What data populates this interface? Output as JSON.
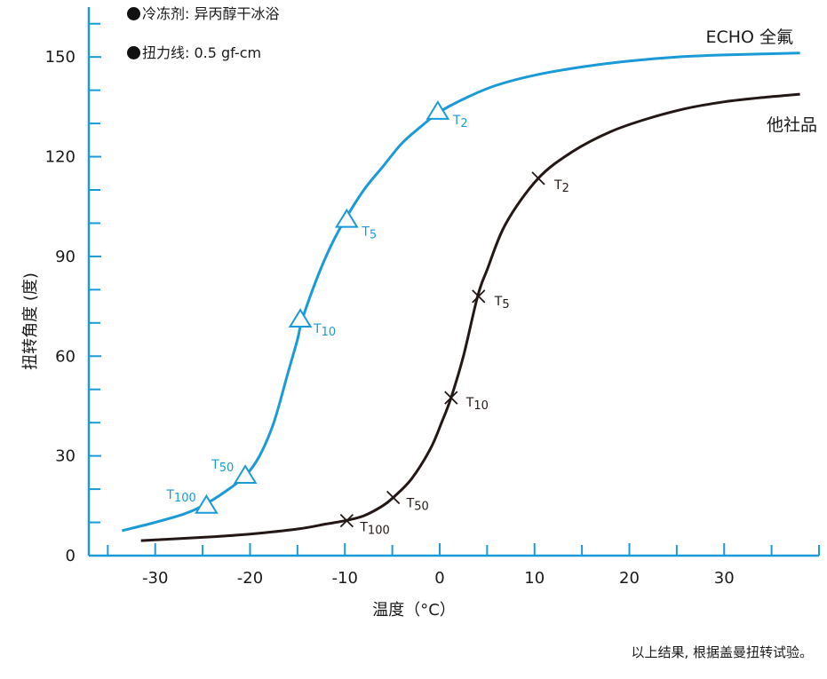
{
  "notes": {
    "refrigerant": "冷冻剂: 异丙醇干冰浴",
    "torque_wire": "扭力线: 0.5 gf-cm"
  },
  "footnote": "以上结果, 根据盖曼扭转试验。",
  "colors": {
    "axis": "#1a9bd7",
    "echo": "#1a9bd7",
    "other": "#231815"
  },
  "chart_data": {
    "type": "line",
    "title": "",
    "xlabel": "温度（°C）",
    "ylabel": "扭转角度 (度)",
    "xlim": [
      -37,
      40
    ],
    "ylim": [
      0,
      165
    ],
    "x_ticks": [
      -30,
      -20,
      -10,
      0,
      10,
      20,
      30
    ],
    "y_ticks": [
      0,
      30,
      60,
      90,
      120,
      150
    ],
    "x_tick_labels": [
      "-30",
      "-20",
      "-10",
      "0",
      "10",
      "20",
      "30"
    ],
    "y_tick_labels": [
      "0",
      "30",
      "60",
      "90",
      "120",
      "150"
    ],
    "grid": false,
    "series": [
      {
        "name": "ECHO 全氟",
        "color": "#1a9bd7",
        "marker": "triangle",
        "x": [
          -33.5,
          -30,
          -27,
          -25,
          -22.5,
          -20.5,
          -19,
          -17.5,
          -16,
          -15,
          -14.5,
          -13,
          -11.5,
          -10,
          -8,
          -6,
          -4,
          -2,
          0,
          3,
          6,
          10,
          15,
          20,
          25,
          30,
          38
        ],
        "y": [
          7.5,
          10,
          12.5,
          15,
          19.5,
          24,
          30,
          40,
          55,
          65,
          71,
          83,
          93,
          101,
          110,
          117,
          124,
          129,
          133.5,
          138,
          141.5,
          144.5,
          147,
          148.8,
          150,
          150.6,
          151.2
        ],
        "points": [
          {
            "label": "T2",
            "x": -0.2,
            "y": 133.5
          },
          {
            "label": "T5",
            "x": -9.8,
            "y": 101
          },
          {
            "label": "T10",
            "x": -14.7,
            "y": 71
          },
          {
            "label": "T50",
            "x": -20.5,
            "y": 24
          },
          {
            "label": "T100",
            "x": -24.6,
            "y": 15
          }
        ]
      },
      {
        "name": "他社品",
        "color": "#231815",
        "marker": "x",
        "x": [
          -31.5,
          -25,
          -20,
          -15,
          -12,
          -10,
          -8,
          -6,
          -4.9,
          -3,
          -1,
          0.2,
          1.2,
          2.5,
          4,
          5,
          7,
          10.4,
          14,
          18,
          22,
          26,
          30,
          34,
          38
        ],
        "y": [
          4.5,
          5.5,
          6.5,
          8,
          9.5,
          10.5,
          12,
          15,
          17.5,
          23,
          32,
          40,
          47.5,
          60,
          78,
          86,
          100,
          113.5,
          121.5,
          127.5,
          131.5,
          134.5,
          136.5,
          137.8,
          138.8
        ],
        "points": [
          {
            "label": "T2",
            "x": 10.4,
            "y": 113.5
          },
          {
            "label": "T5",
            "x": 4.1,
            "y": 78
          },
          {
            "label": "T10",
            "x": 1.2,
            "y": 47.5
          },
          {
            "label": "T50",
            "x": -4.9,
            "y": 17.5
          },
          {
            "label": "T100",
            "x": -9.8,
            "y": 10.5
          }
        ]
      }
    ]
  }
}
